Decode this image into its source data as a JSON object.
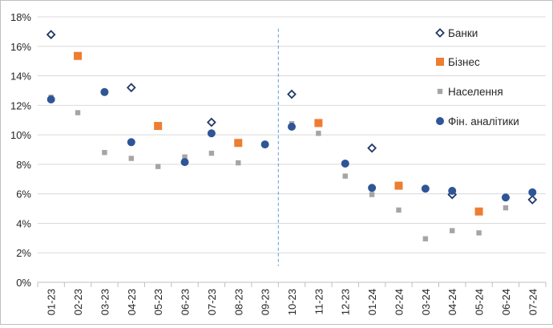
{
  "chart_data": {
    "type": "scatter",
    "title": "",
    "xlabel": "",
    "ylabel": "",
    "categories": [
      "01-23",
      "02-23",
      "03-23",
      "04-23",
      "05-23",
      "06-23",
      "07-23",
      "08-23",
      "09-23",
      "10-23",
      "11-23",
      "12-23",
      "01-24",
      "02-24",
      "03-24",
      "04-24",
      "05-24",
      "06-24",
      "07-24"
    ],
    "ylim": [
      0,
      18
    ],
    "ytick_values": [
      0,
      2,
      4,
      6,
      8,
      10,
      12,
      14,
      16,
      18
    ],
    "ytick_labels": [
      "0%",
      "2%",
      "4%",
      "6%",
      "8%",
      "10%",
      "12%",
      "14%",
      "16%",
      "18%"
    ],
    "grid": true,
    "divider_after_category": "09-23",
    "legend_position": "top-right",
    "series": [
      {
        "name": "Банки",
        "marker": "diamond-open",
        "color": "#1f3864",
        "values": [
          16.8,
          null,
          null,
          13.2,
          null,
          null,
          10.85,
          null,
          null,
          12.75,
          null,
          null,
          9.1,
          null,
          null,
          5.95,
          null,
          null,
          5.6
        ]
      },
      {
        "name": "Бізнес",
        "marker": "square",
        "color": "#ed7d31",
        "values": [
          null,
          15.35,
          null,
          null,
          10.6,
          null,
          null,
          9.45,
          null,
          null,
          10.8,
          null,
          null,
          6.55,
          null,
          null,
          4.8,
          null,
          null
        ]
      },
      {
        "name": "Населення",
        "marker": "small-square",
        "color": "#a5a5a5",
        "values": [
          12.55,
          11.5,
          8.8,
          8.4,
          7.85,
          8.5,
          8.75,
          8.1,
          null,
          10.75,
          10.1,
          7.2,
          5.95,
          4.9,
          2.95,
          3.5,
          3.35,
          5.05,
          null
        ]
      },
      {
        "name": "Фін. аналітики",
        "marker": "circle",
        "color": "#2f5597",
        "values": [
          12.4,
          null,
          12.9,
          9.5,
          null,
          8.15,
          10.1,
          null,
          9.35,
          10.55,
          null,
          8.05,
          6.4,
          null,
          6.35,
          6.2,
          null,
          5.75,
          6.1
        ]
      }
    ]
  }
}
